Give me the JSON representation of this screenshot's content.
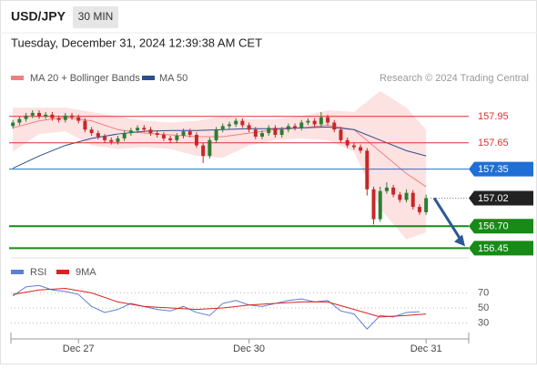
{
  "chart_data": {
    "type": "candlestick",
    "title": "USD/JPY",
    "timeframe": "30 MIN",
    "subtitle": "Tuesday, December 31, 2024 12:39:38 AM CET",
    "attribution": "Research © 2024 Trading Central",
    "up_color": "#2e7d32",
    "down_color": "#c62828",
    "xlim": [
      -0.3,
      69.5
    ],
    "xticks": [
      {
        "value": 10,
        "label": "Dec 27"
      },
      {
        "value": 36,
        "label": "Dec 30"
      },
      {
        "value": 63,
        "label": "Dec 31"
      }
    ],
    "ylim": [
      156.34,
      158.29
    ],
    "candles": [
      [
        157.84,
        157.91,
        157.81,
        157.88
      ],
      [
        157.88,
        157.95,
        157.85,
        157.92
      ],
      [
        157.92,
        157.99,
        157.89,
        157.96
      ],
      [
        157.96,
        158.02,
        157.93,
        157.99
      ],
      [
        157.99,
        158.02,
        157.92,
        157.95
      ],
      [
        157.95,
        158,
        157.92,
        157.97
      ],
      [
        157.97,
        158,
        157.9,
        157.93
      ],
      [
        157.93,
        157.96,
        157.88,
        157.91
      ],
      [
        157.91,
        157.99,
        157.88,
        157.96
      ],
      [
        157.96,
        157.99,
        157.91,
        157.94
      ],
      [
        157.94,
        157.97,
        157.87,
        157.9
      ],
      [
        157.9,
        157.93,
        157.77,
        157.8
      ],
      [
        157.8,
        157.83,
        157.73,
        157.76
      ],
      [
        157.76,
        157.79,
        157.69,
        157.72
      ],
      [
        157.72,
        157.75,
        157.65,
        157.68
      ],
      [
        157.68,
        157.71,
        157.63,
        157.66
      ],
      [
        157.66,
        157.73,
        157.63,
        157.7
      ],
      [
        157.7,
        157.79,
        157.67,
        157.76
      ],
      [
        157.76,
        157.82,
        157.73,
        157.79
      ],
      [
        157.79,
        157.85,
        157.76,
        157.82
      ],
      [
        157.82,
        157.85,
        157.77,
        157.8
      ],
      [
        157.8,
        157.83,
        157.73,
        157.76
      ],
      [
        157.76,
        157.79,
        157.71,
        157.74
      ],
      [
        157.74,
        157.77,
        157.67,
        157.7
      ],
      [
        157.7,
        157.73,
        157.65,
        157.68
      ],
      [
        157.68,
        157.76,
        157.65,
        157.73
      ],
      [
        157.73,
        157.81,
        157.7,
        157.78
      ],
      [
        157.78,
        157.81,
        157.71,
        157.74
      ],
      [
        157.74,
        157.77,
        157.59,
        157.62
      ],
      [
        157.62,
        157.65,
        157.42,
        157.5
      ],
      [
        157.5,
        157.71,
        157.47,
        157.68
      ],
      [
        157.68,
        157.83,
        157.65,
        157.8
      ],
      [
        157.8,
        157.87,
        157.77,
        157.84
      ],
      [
        157.84,
        157.89,
        157.81,
        157.86
      ],
      [
        157.86,
        157.93,
        157.83,
        157.9
      ],
      [
        157.9,
        157.93,
        157.82,
        157.85
      ],
      [
        157.85,
        157.88,
        157.77,
        157.8
      ],
      [
        157.8,
        157.83,
        157.69,
        157.72
      ],
      [
        157.72,
        157.79,
        157.69,
        157.76
      ],
      [
        157.76,
        157.85,
        157.73,
        157.82
      ],
      [
        157.82,
        157.85,
        157.71,
        157.74
      ],
      [
        157.74,
        157.83,
        157.71,
        157.8
      ],
      [
        157.8,
        157.87,
        157.77,
        157.84
      ],
      [
        157.84,
        157.87,
        157.79,
        157.82
      ],
      [
        157.82,
        157.91,
        157.79,
        157.88
      ],
      [
        157.88,
        157.93,
        157.85,
        157.9
      ],
      [
        157.9,
        157.93,
        157.83,
        157.86
      ],
      [
        157.86,
        158,
        157.83,
        157.94
      ],
      [
        157.94,
        157.97,
        157.85,
        157.88
      ],
      [
        157.88,
        157.91,
        157.77,
        157.8
      ],
      [
        157.8,
        157.83,
        157.65,
        157.68
      ],
      [
        157.68,
        157.71,
        157.59,
        157.62
      ],
      [
        157.62,
        157.65,
        157.57,
        157.6
      ],
      [
        157.6,
        157.63,
        157.53,
        157.56
      ],
      [
        157.56,
        157.59,
        157.05,
        157.12
      ],
      [
        157.12,
        157.15,
        156.72,
        156.78
      ],
      [
        156.78,
        157.15,
        156.75,
        157.1
      ],
      [
        157.1,
        157.2,
        157.07,
        157.14
      ],
      [
        157.14,
        157.17,
        157.03,
        157.06
      ],
      [
        157.06,
        157.09,
        156.97,
        157
      ],
      [
        157,
        157.12,
        156.97,
        157.08
      ],
      [
        157.08,
        157.11,
        156.89,
        156.92
      ],
      [
        156.92,
        156.95,
        156.83,
        156.86
      ],
      [
        156.86,
        157.06,
        156.83,
        157.02
      ]
    ],
    "overlay_x": [
      0,
      4,
      8,
      12,
      16,
      20,
      24,
      28,
      32,
      36,
      40,
      44,
      48,
      52,
      56,
      60,
      63
    ],
    "bands": {
      "name": "MA 20 + Bollinger Bands",
      "color": "#f08080",
      "fill": "#fde2e2",
      "middle": [
        157.82,
        157.9,
        157.94,
        157.9,
        157.8,
        157.76,
        157.74,
        157.72,
        157.72,
        157.76,
        157.8,
        157.82,
        157.85,
        157.8,
        157.55,
        157.3,
        157.15
      ],
      "upper": [
        158.05,
        158.05,
        158.05,
        158,
        157.95,
        157.9,
        157.88,
        157.9,
        157.95,
        157.92,
        157.92,
        157.95,
        158.02,
        158,
        158.24,
        158.05,
        157.8
      ],
      "lower": [
        157.55,
        157.75,
        157.78,
        157.62,
        157.58,
        157.6,
        157.58,
        157.5,
        157.48,
        157.62,
        157.68,
        157.7,
        157.68,
        157.55,
        156.9,
        156.55,
        156.63
      ]
    },
    "ma50": {
      "name": "MA 50",
      "color": "#2b4f8c",
      "values": [
        157.36,
        157.5,
        157.62,
        157.7,
        157.75,
        157.78,
        157.79,
        157.79,
        157.8,
        157.81,
        157.81,
        157.82,
        157.83,
        157.8,
        157.68,
        157.56,
        157.5
      ]
    },
    "levels": [
      {
        "value": 157.95,
        "color": "#e03030",
        "box": false,
        "style": "solid"
      },
      {
        "value": 157.65,
        "color": "#e03030",
        "box": false,
        "style": "solid"
      },
      {
        "value": 157.35,
        "color": "#1f6fd6",
        "box": true,
        "style": "solid"
      },
      {
        "value": 157.02,
        "color": "#222222",
        "box": true,
        "style": "dotted"
      },
      {
        "value": 156.7,
        "label": "156.70",
        "color": "#178a17",
        "box": true,
        "style": "thick"
      },
      {
        "value": 156.45,
        "color": "#178a17",
        "box": true,
        "style": "thick"
      }
    ],
    "rsi": {
      "ylim": [
        10,
        90
      ],
      "yticks": [
        70,
        50,
        30
      ],
      "series": [
        {
          "name": "RSI",
          "color": "#5b7fd6",
          "x": [
            0,
            2,
            4,
            6,
            8,
            10,
            12,
            14,
            16,
            18,
            20,
            22,
            24,
            26,
            28,
            30,
            32,
            34,
            36,
            38,
            40,
            42,
            44,
            46,
            48,
            50,
            52,
            54,
            56,
            58,
            60,
            62
          ],
          "values": [
            66,
            78,
            80,
            74,
            72,
            68,
            52,
            44,
            48,
            56,
            52,
            48,
            46,
            52,
            44,
            40,
            56,
            60,
            54,
            52,
            56,
            60,
            62,
            58,
            60,
            46,
            42,
            22,
            40,
            38,
            44,
            45
          ]
        },
        {
          "name": "9MA",
          "color": "#e02020",
          "x": [
            0,
            4,
            8,
            12,
            16,
            20,
            24,
            28,
            32,
            36,
            40,
            44,
            48,
            52,
            56,
            60,
            63
          ],
          "values": [
            68,
            74,
            76,
            70,
            58,
            52,
            50,
            48,
            50,
            54,
            56,
            58,
            58,
            48,
            38,
            40,
            42
          ]
        }
      ]
    }
  }
}
